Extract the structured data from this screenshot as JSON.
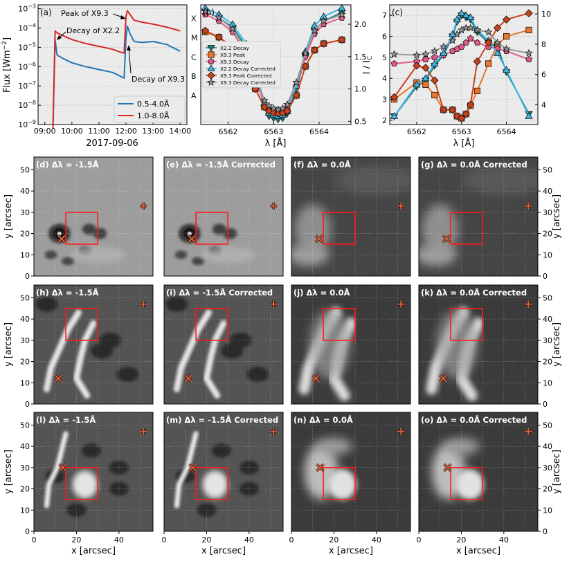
{
  "chart_data": [
    {
      "type": "line",
      "panel_label": "(a)",
      "date_label": "2017-09-06",
      "ylabel": "Flux [Wm$^{-2}$]",
      "x_ticks": [
        "09:00",
        "10:00",
        "11:00",
        "12:00",
        "13:00",
        "14:00"
      ],
      "x_range_hours": [
        8.75,
        14.25
      ],
      "y_log_range": [
        -9,
        -2.8
      ],
      "y_ticks": [
        "10$^{-9}$",
        "10$^{-8}$",
        "10$^{-7}$",
        "10$^{-6}$",
        "10$^{-5}$",
        "10$^{-4}$",
        "10$^{-3}$"
      ],
      "class_labels": [
        "A",
        "B",
        "C",
        "M",
        "X"
      ],
      "legend": [
        "0.5-4.0Å",
        "1.0-8.0Å"
      ],
      "annotations": {
        "peak": "Peak of X9.3",
        "decay_x22": "Decay of X2.2",
        "decay_x93": "Decay of X9.3"
      },
      "series": [
        {
          "name": "0.5-4.0Å",
          "color": "#1f77b4",
          "t": [
            9.3,
            9.38,
            9.45,
            9.7,
            10.0,
            10.5,
            11.0,
            11.5,
            11.8,
            11.93,
            12.0,
            12.05,
            12.15,
            12.3,
            12.6,
            13.0,
            13.5,
            14.0
          ],
          "logf": [
            -9.2,
            -4.6,
            -5.4,
            -5.6,
            -5.8,
            -6.0,
            -6.15,
            -6.3,
            -6.5,
            -6.6,
            -4.5,
            -3.9,
            -4.3,
            -4.7,
            -4.75,
            -4.7,
            -4.85,
            -5.2
          ]
        },
        {
          "name": "1.0-8.0Å",
          "color": "#d62728",
          "t": [
            9.3,
            9.38,
            9.45,
            9.6,
            10.0,
            10.5,
            11.0,
            11.5,
            11.8,
            11.93,
            12.0,
            12.05,
            12.15,
            12.3,
            12.6,
            13.0,
            13.5,
            14.0
          ],
          "logf": [
            -9.2,
            -4.15,
            -4.25,
            -4.35,
            -4.6,
            -4.8,
            -4.95,
            -5.1,
            -5.25,
            -5.3,
            -3.4,
            -3.1,
            -3.3,
            -3.6,
            -3.7,
            -3.8,
            -3.95,
            -4.15
          ]
        }
      ]
    },
    {
      "type": "line",
      "panel_label": "(b)",
      "xlabel": "λ [Å]",
      "x_ticks": [
        "6562",
        "6563",
        "6564"
      ],
      "x_range": [
        6561.4,
        6564.7
      ],
      "y_range_right": [
        0.45,
        2.3
      ],
      "y_ticks_right": [
        "0.5",
        "1.0",
        "1.5",
        "2.0"
      ],
      "x": [
        6561.5,
        6561.8,
        6562.1,
        6562.4,
        6562.6,
        6562.8,
        6562.9,
        6563.0,
        6563.1,
        6563.2,
        6563.3,
        6563.5,
        6563.7,
        6563.9,
        6564.1,
        6564.5
      ],
      "series": [
        {
          "name": "X2.2 Decay",
          "color": "#1a7d7d",
          "marker": "tri_down",
          "values": [
            2.2,
            2.1,
            1.95,
            1.65,
            1.25,
            0.72,
            0.58,
            0.55,
            0.53,
            0.55,
            0.62,
            1.0,
            1.5,
            1.9,
            2.05,
            2.18
          ]
        },
        {
          "name": "X9.3 Peak",
          "color": "#e8752b",
          "marker": "square",
          "values": [
            1.88,
            1.8,
            1.65,
            1.35,
            1.0,
            0.72,
            0.66,
            0.63,
            0.62,
            0.63,
            0.66,
            0.9,
            1.35,
            1.6,
            1.7,
            1.76
          ]
        },
        {
          "name": "X9.3 Decay",
          "color": "#e35a8a",
          "marker": "pentagon",
          "values": [
            2.15,
            2.05,
            1.88,
            1.55,
            1.15,
            0.78,
            0.7,
            0.67,
            0.65,
            0.67,
            0.72,
            1.05,
            1.5,
            1.85,
            2.0,
            2.1
          ]
        },
        {
          "name": "X2.2 Decay Corrected",
          "color": "#41b6e6",
          "marker": "tri_up",
          "values": [
            2.25,
            2.15,
            2.0,
            1.7,
            1.3,
            0.78,
            0.63,
            0.6,
            0.58,
            0.6,
            0.66,
            1.05,
            1.58,
            1.98,
            2.12,
            2.25
          ]
        },
        {
          "name": "X9.3 Peak Corrected",
          "color": "#c8421b",
          "marker": "diamond",
          "values": [
            1.9,
            1.8,
            1.65,
            1.34,
            1.0,
            0.72,
            0.66,
            0.63,
            0.62,
            0.63,
            0.66,
            0.9,
            1.35,
            1.6,
            1.7,
            1.76
          ]
        },
        {
          "name": "X9.3 Decay Corrected",
          "color": "#999999",
          "marker": "star",
          "values": [
            2.2,
            2.1,
            1.93,
            1.6,
            1.2,
            0.82,
            0.74,
            0.7,
            0.68,
            0.7,
            0.76,
            1.1,
            1.55,
            1.9,
            2.05,
            2.15
          ]
        }
      ]
    },
    {
      "type": "line",
      "panel_label": "(c)",
      "xlabel": "λ [Å]",
      "ylabel": "I / I$_C$",
      "x_ticks": [
        "6562",
        "6563",
        "6564"
      ],
      "x_range": [
        6561.4,
        6564.7
      ],
      "y_range_left": [
        1.8,
        7.5
      ],
      "y_ticks_left": [
        "2",
        "3",
        "4",
        "5",
        "6",
        "7"
      ],
      "y_range_right": [
        2.7,
        10.6
      ],
      "y_ticks_right": [
        "4",
        "6",
        "8",
        "10"
      ],
      "x": [
        6561.5,
        6562.0,
        6562.2,
        6562.4,
        6562.6,
        6562.8,
        6562.9,
        6563.0,
        6563.1,
        6563.2,
        6563.35,
        6563.6,
        6563.8,
        6564.0,
        6564.5
      ],
      "series": [
        {
          "name": "X2.2 Decay",
          "color": "#1a7d7d",
          "marker": "tri_down",
          "values": [
            2.2,
            3.6,
            3.9,
            4.6,
            5.1,
            6.0,
            6.7,
            7.0,
            6.9,
            6.8,
            6.2,
            5.7,
            5.5,
            4.3,
            2.3
          ]
        },
        {
          "name": "X9.3 Peak",
          "color": "#e8752b",
          "marker": "square",
          "values": [
            3.0,
            3.8,
            3.7,
            3.2,
            2.5,
            2.5,
            2.2,
            2.1,
            2.3,
            2.7,
            3.4,
            4.7,
            5.6,
            6.0,
            6.3
          ]
        },
        {
          "name": "X9.3 Decay",
          "color": "#e35a8a",
          "marker": "pentagon",
          "values": [
            4.7,
            4.8,
            4.9,
            5.0,
            5.1,
            5.3,
            5.4,
            5.5,
            5.7,
            5.9,
            5.7,
            5.5,
            5.4,
            5.3,
            4.9
          ]
        },
        {
          "name": "X2.2 Decay Corrected",
          "color": "#41b6e6",
          "marker": "tri_up",
          "values": [
            2.2,
            3.7,
            4.0,
            4.7,
            5.2,
            6.1,
            6.8,
            7.1,
            7.0,
            6.9,
            6.3,
            5.8,
            5.2,
            4.4,
            2.2
          ]
        },
        {
          "name": "X9.3 Peak Corrected",
          "color": "#c8421b",
          "marker": "diamond",
          "values": [
            3.1,
            4.6,
            4.5,
            3.9,
            2.5,
            2.5,
            2.2,
            2.1,
            2.3,
            2.75,
            4.8,
            5.7,
            6.4,
            6.8,
            7.1
          ]
        },
        {
          "name": "X9.3 Decay Corrected",
          "color": "#999999",
          "marker": "star",
          "values": [
            5.15,
            5.1,
            5.15,
            5.3,
            5.5,
            5.8,
            6.1,
            6.3,
            6.4,
            6.4,
            6.3,
            6.2,
            5.7,
            5.4,
            5.2
          ]
        }
      ]
    },
    {
      "type": "image_grid",
      "xlabel": "x [arcsec]",
      "ylabel": "y [arcsec]",
      "axis_ticks": [
        "0",
        "10",
        "20",
        "30",
        "40",
        "50"
      ],
      "axis_range": [
        0,
        56
      ],
      "rows": [
        {
          "panels": [
            {
              "label": "(d) Δλ = -1.5Å",
              "style": "wing",
              "scene": "row1"
            },
            {
              "label": "(e) Δλ = -1.5Å Corrected",
              "style": "wing",
              "scene": "row1"
            },
            {
              "label": "(f) Δλ = 0.0Å",
              "style": "core",
              "scene": "row1"
            },
            {
              "label": "(g) Δλ = 0.0Å Corrected",
              "style": "core",
              "scene": "row1"
            }
          ],
          "box": [
            15,
            15,
            30,
            30
          ],
          "cross": [
            13,
            17.5
          ],
          "plus": [
            51.5,
            33
          ]
        },
        {
          "panels": [
            {
              "label": "(h) Δλ = -1.5Å",
              "style": "wing",
              "scene": "row2"
            },
            {
              "label": "(i) Δλ = -1.5Å Corrected",
              "style": "wing",
              "scene": "row2"
            },
            {
              "label": "(j) Δλ = 0.0Å",
              "style": "core",
              "scene": "row2"
            },
            {
              "label": "(k) Δλ = 0.0Å Corrected",
              "style": "core",
              "scene": "row2"
            }
          ],
          "box": [
            15,
            30,
            30,
            45
          ],
          "cross": [
            11.5,
            12
          ],
          "plus": [
            51.5,
            47
          ]
        },
        {
          "panels": [
            {
              "label": "(l) Δλ = -1.5Å",
              "style": "wing",
              "scene": "row3"
            },
            {
              "label": "(m) Δλ = -1.5Å Corrected",
              "style": "wing",
              "scene": "row3"
            },
            {
              "label": "(n) Δλ = 0.0Å",
              "style": "core",
              "scene": "row3"
            },
            {
              "label": "(o) Δλ = 0.0Å Corrected",
              "style": "core",
              "scene": "row3"
            }
          ],
          "box": [
            15,
            15,
            30,
            30
          ],
          "cross": [
            13.5,
            30
          ],
          "plus": [
            51.5,
            47
          ]
        }
      ]
    }
  ]
}
